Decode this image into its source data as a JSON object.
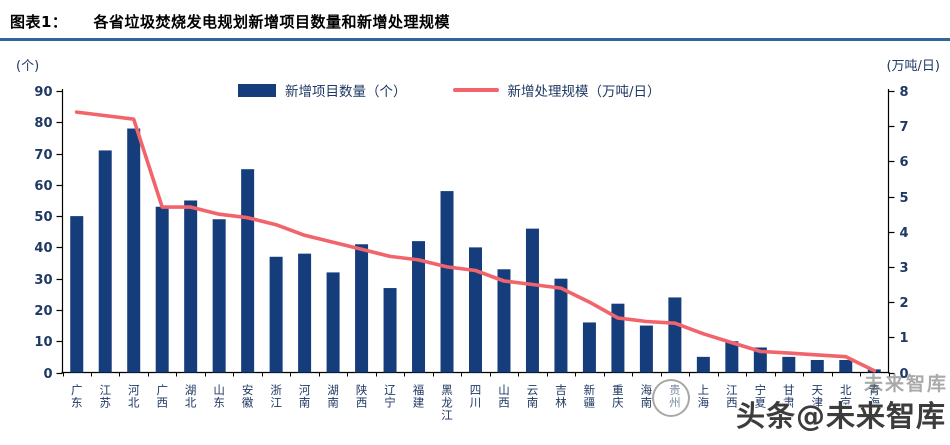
{
  "header": {
    "prefix": "图表1：",
    "title": "各省垃圾焚烧发电规划新增项目数量和新增处理规模"
  },
  "chart_data": {
    "type": "bar",
    "title": "各省垃圾焚烧发电规划新增项目数量和新增处理规模",
    "legend_position": "top-center",
    "grid": false,
    "categories": [
      "广东",
      "江苏",
      "河北",
      "广西",
      "湖北",
      "山东",
      "安徽",
      "浙江",
      "河南",
      "湖南",
      "陕西",
      "辽宁",
      "福建",
      "黑龙江",
      "四川",
      "山西",
      "云南",
      "吉林",
      "新疆",
      "重庆",
      "海南",
      "贵州",
      "上海",
      "江西",
      "宁夏",
      "甘肃",
      "天津",
      "北京",
      "青海"
    ],
    "series": [
      {
        "name": "新增项目数量（个）",
        "type": "bar",
        "axis": "left",
        "color": "#153D7C",
        "values": [
          50,
          71,
          78,
          53,
          55,
          49,
          65,
          37,
          38,
          32,
          41,
          27,
          42,
          58,
          40,
          33,
          46,
          30,
          16,
          22,
          15,
          24,
          5,
          10,
          8,
          5,
          4,
          4,
          1
        ]
      },
      {
        "name": "新增处理规模（万吨/日）",
        "type": "line",
        "axis": "right",
        "color": "#F2646B",
        "values": [
          7.4,
          7.3,
          7.2,
          4.7,
          4.7,
          4.5,
          4.4,
          4.2,
          3.9,
          3.7,
          3.5,
          3.3,
          3.2,
          3.0,
          2.9,
          2.6,
          2.5,
          2.4,
          2.0,
          1.55,
          1.45,
          1.4,
          1.1,
          0.85,
          0.6,
          0.55,
          0.5,
          0.45,
          0.05
        ]
      }
    ],
    "left_axis": {
      "unit": "(个)",
      "min": 0,
      "max": 90,
      "step": 10,
      "tick_labels": [
        "0",
        "10",
        "20",
        "30",
        "40",
        "50",
        "60",
        "70",
        "80",
        "90"
      ]
    },
    "right_axis": {
      "unit": "(万吨/日)",
      "min": 0,
      "max": 8,
      "step": 1,
      "tick_labels": [
        "0",
        "1",
        "2",
        "3",
        "4",
        "5",
        "6",
        "7",
        "8"
      ]
    }
  },
  "watermark": {
    "text": "头条@未来智库",
    "ghost_text": "未来智库"
  },
  "colors": {
    "bar": "#153D7C",
    "line": "#F2646B",
    "axis_line": "#000000",
    "axis_text": "#1F3864",
    "title_rule": "#31659C",
    "watermark": "#3C3C3C"
  }
}
